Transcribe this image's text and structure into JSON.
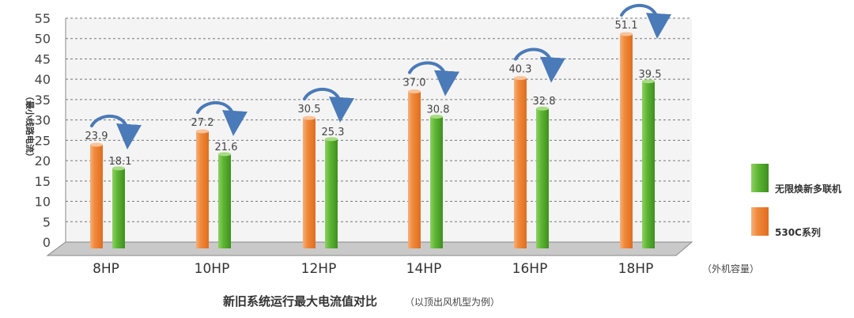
{
  "chart_data": {
    "type": "bar",
    "title": "新旧系统运行最大电流值对比",
    "subtitle": "（以顶出风机型为例）",
    "ylabel": "（最小线路电流）",
    "x_note": "（外机容量）",
    "categories": [
      "8HP",
      "10HP",
      "12HP",
      "14HP",
      "16HP",
      "18HP"
    ],
    "ylim": [
      0,
      55
    ],
    "yticks": [
      0,
      5,
      10,
      15,
      20,
      25,
      30,
      35,
      40,
      45,
      50,
      55
    ],
    "grid": true,
    "legend_position": "right",
    "series": [
      {
        "name": "530C系列",
        "color": "#f08a3c",
        "values": [
          23.9,
          27.2,
          30.5,
          37.0,
          40.3,
          51.1
        ]
      },
      {
        "name": "无限焕新多联机",
        "color": "#5db534",
        "values": [
          18.1,
          21.6,
          25.3,
          30.8,
          32.8,
          39.5
        ]
      }
    ],
    "value_labels_old": [
      "23.9",
      "27.2",
      "30.5",
      "37.0",
      "40.3",
      "51.1"
    ],
    "value_labels_new": [
      "18.1",
      "21.6",
      "25.3",
      "30.8",
      "32.8",
      "39.5"
    ]
  },
  "legend": {
    "items": [
      {
        "label": "无限焕新多联机",
        "color": "#5db534"
      },
      {
        "label": "530C系列",
        "color": "#f08a3c"
      }
    ]
  }
}
